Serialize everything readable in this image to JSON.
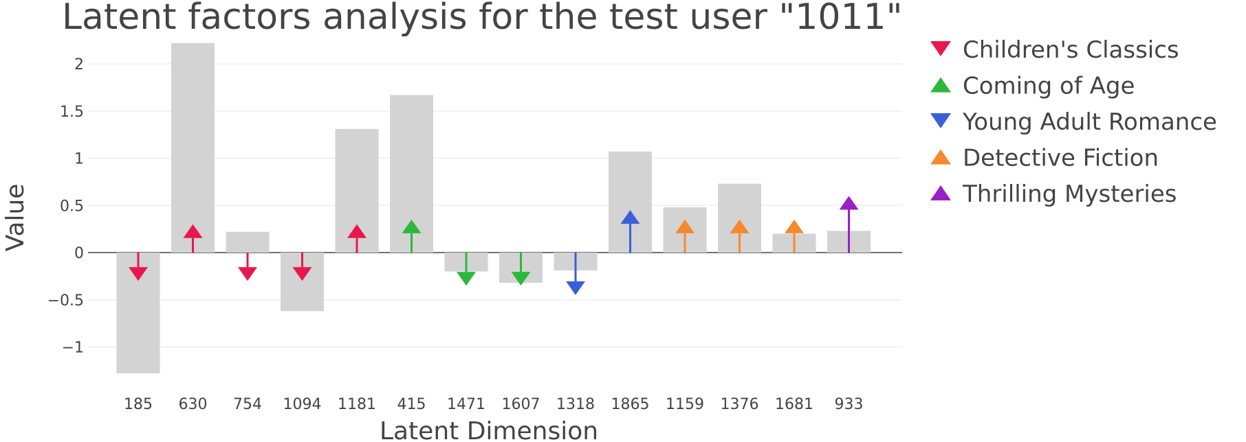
{
  "chart_data": {
    "type": "bar",
    "title": "Latent factors analysis for the test user \"1011\"",
    "xlabel": "Latent Dimension",
    "ylabel": "Value",
    "ylim": [
      -1.45,
      2.25
    ],
    "yticks": [
      -1,
      -0.5,
      0,
      0.5,
      1,
      1.5,
      2
    ],
    "ytick_labels": [
      "−1",
      "−0.5",
      "0",
      "0.5",
      "1",
      "1.5",
      "2"
    ],
    "grid": true,
    "legend_position": "right",
    "categories": [
      "185",
      "630",
      "754",
      "1094",
      "1181",
      "415",
      "1471",
      "1607",
      "1318",
      "1865",
      "1159",
      "1376",
      "1681",
      "933"
    ],
    "bar_color": "#d3d3d3",
    "values": [
      -1.28,
      2.22,
      0.22,
      -0.62,
      1.31,
      1.67,
      -0.2,
      -0.32,
      -0.19,
      1.07,
      0.48,
      0.73,
      0.2,
      0.23
    ],
    "arrow_values": [
      -0.3,
      0.3,
      -0.3,
      -0.3,
      0.3,
      0.35,
      -0.35,
      -0.35,
      -0.45,
      0.45,
      0.35,
      0.35,
      0.35,
      0.6
    ],
    "arrow_series": [
      0,
      0,
      0,
      0,
      0,
      1,
      1,
      1,
      2,
      2,
      3,
      3,
      3,
      4
    ],
    "series": [
      {
        "name": "Children's Classics",
        "color": "#e8174d",
        "marker": "triangle-down"
      },
      {
        "name": "Coming of Age",
        "color": "#2db83d",
        "marker": "triangle-up"
      },
      {
        "name": "Young Adult Romance",
        "color": "#3a5fd9",
        "marker": "triangle-down"
      },
      {
        "name": "Detective Fiction",
        "color": "#f5892e",
        "marker": "triangle-up"
      },
      {
        "name": "Thrilling Mysteries",
        "color": "#9b1fc4",
        "marker": "triangle-up"
      }
    ]
  }
}
